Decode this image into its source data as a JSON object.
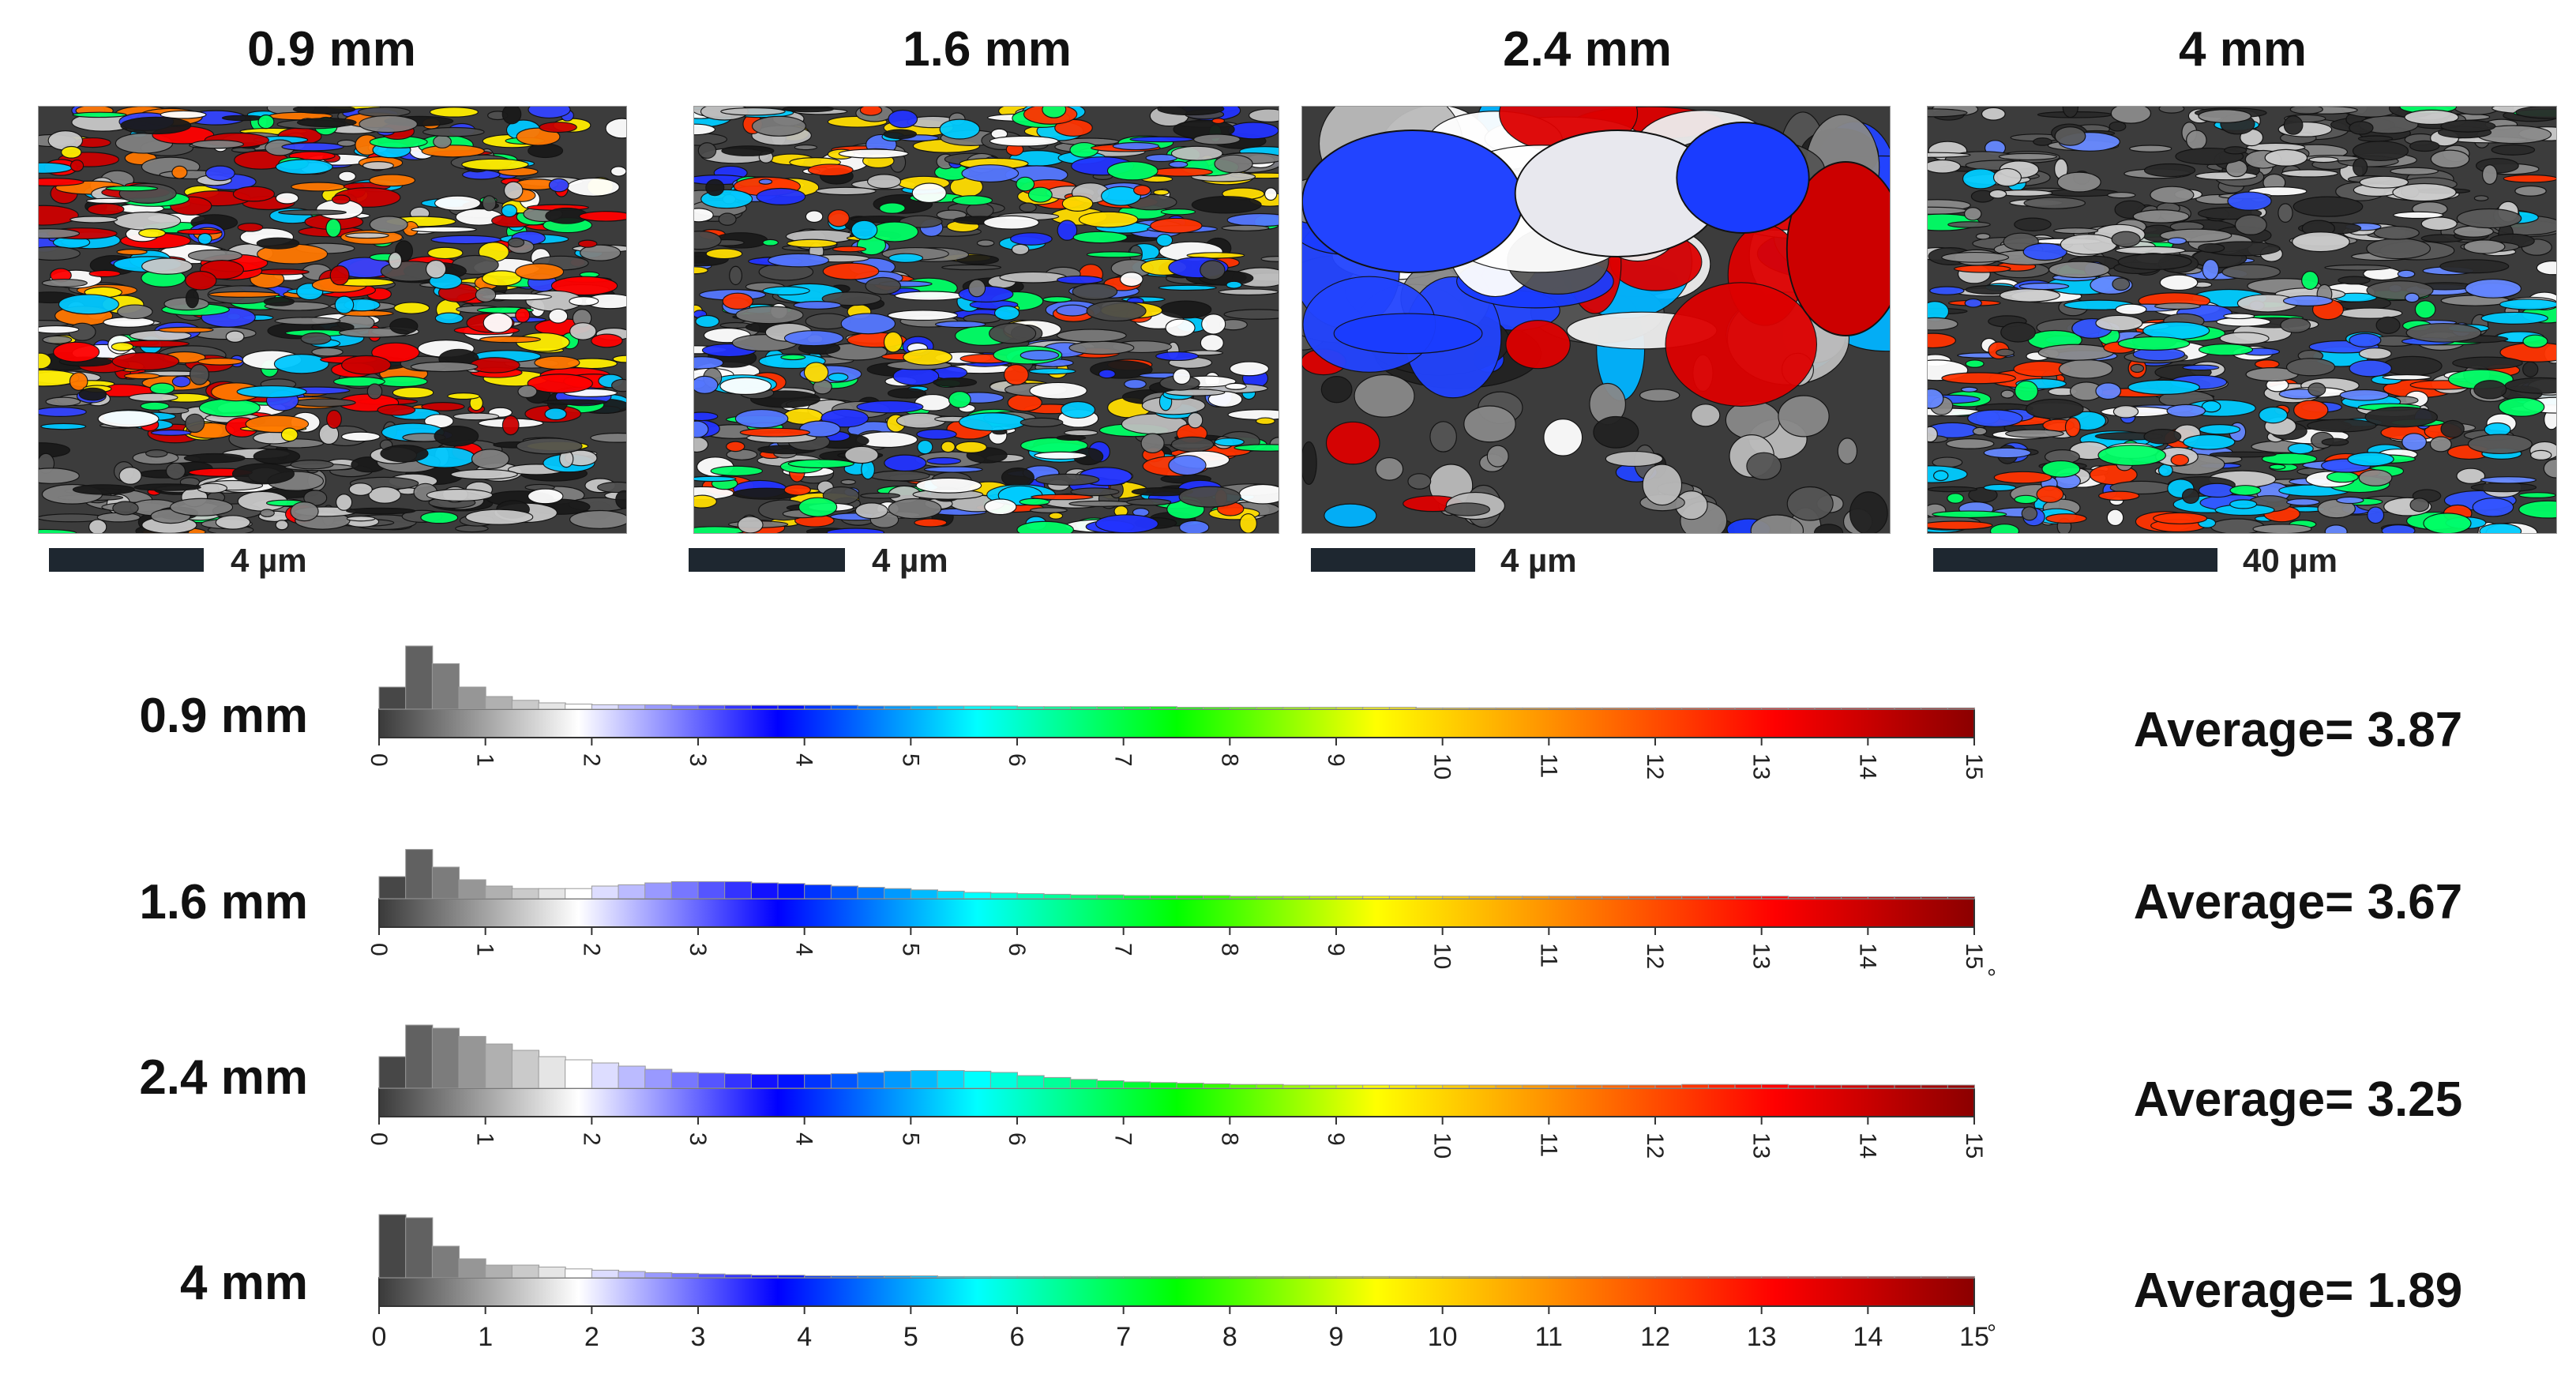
{
  "panels": [
    {
      "title": "0.9 mm",
      "scale": "4 µm"
    },
    {
      "title": "1.6 mm",
      "scale": "4 µm"
    },
    {
      "title": "2.4 mm",
      "scale": "4 µm"
    },
    {
      "title": "4 mm",
      "scale": "40 µm"
    }
  ],
  "color_key": {
    "stops": [
      "#3a3a3a",
      "#ffffff",
      "#0000ff",
      "#00ffff",
      "#00ff00",
      "#ffff00",
      "#ff8000",
      "#ff0000",
      "#8b0000"
    ]
  },
  "chart_data": [
    {
      "type": "bar",
      "label": "0.9 mm",
      "average_label": "Average= 3.87",
      "x_ticks": [
        "0",
        "1",
        "2",
        "3",
        "4",
        "5",
        "6",
        "7",
        "8",
        "9",
        "10",
        "11",
        "12",
        "13",
        "14",
        "15"
      ],
      "xlim": [
        0,
        15
      ],
      "tick_orientation": "rotated",
      "unit_mark": "",
      "bin_width": 0.25,
      "values": [
        0.35,
        1.0,
        0.72,
        0.35,
        0.2,
        0.14,
        0.1,
        0.08,
        0.07,
        0.07,
        0.07,
        0.06,
        0.06,
        0.06,
        0.06,
        0.06,
        0.06,
        0.06,
        0.05,
        0.05,
        0.05,
        0.05,
        0.05,
        0.05,
        0.04,
        0.04,
        0.04,
        0.04,
        0.04,
        0.04,
        0.03,
        0.03,
        0.03,
        0.03,
        0.03,
        0.03,
        0.03,
        0.03,
        0.03,
        0.02,
        0.02,
        0.02,
        0.02,
        0.02,
        0.02,
        0.02,
        0.02,
        0.02,
        0.02,
        0.02,
        0.02,
        0.02,
        0.02,
        0.02,
        0.02,
        0.02,
        0.02,
        0.02,
        0.02,
        0.02
      ]
    },
    {
      "type": "bar",
      "label": "1.6 mm",
      "average_label": "Average= 3.67",
      "x_ticks": [
        "0",
        "1",
        "2",
        "3",
        "4",
        "5",
        "6",
        "7",
        "8",
        "9",
        "10",
        "11",
        "12",
        "13",
        "14",
        "15"
      ],
      "xlim": [
        0,
        15
      ],
      "tick_orientation": "rotated",
      "unit_mark": "°",
      "bin_width": 0.25,
      "values": [
        0.35,
        0.78,
        0.5,
        0.3,
        0.2,
        0.16,
        0.16,
        0.16,
        0.2,
        0.22,
        0.25,
        0.27,
        0.27,
        0.27,
        0.25,
        0.24,
        0.22,
        0.2,
        0.18,
        0.16,
        0.14,
        0.12,
        0.1,
        0.09,
        0.08,
        0.07,
        0.06,
        0.06,
        0.05,
        0.05,
        0.05,
        0.05,
        0.04,
        0.04,
        0.04,
        0.04,
        0.04,
        0.04,
        0.04,
        0.04,
        0.04,
        0.04,
        0.04,
        0.04,
        0.04,
        0.04,
        0.04,
        0.04,
        0.04,
        0.04,
        0.04,
        0.04,
        0.04,
        0.03,
        0.03,
        0.03,
        0.03,
        0.03,
        0.03,
        0.03
      ]
    },
    {
      "type": "bar",
      "label": "2.4 mm",
      "average_label": "Average= 3.25",
      "x_ticks": [
        "0",
        "1",
        "2",
        "3",
        "4",
        "5",
        "6",
        "7",
        "8",
        "9",
        "10",
        "11",
        "12",
        "13",
        "14",
        "15"
      ],
      "xlim": [
        0,
        15
      ],
      "tick_orientation": "rotated",
      "unit_mark": "",
      "bin_width": 0.25,
      "values": [
        0.5,
        1.0,
        0.95,
        0.82,
        0.7,
        0.6,
        0.5,
        0.45,
        0.4,
        0.35,
        0.3,
        0.25,
        0.24,
        0.23,
        0.22,
        0.22,
        0.22,
        0.23,
        0.25,
        0.27,
        0.28,
        0.28,
        0.27,
        0.25,
        0.2,
        0.17,
        0.14,
        0.12,
        0.1,
        0.09,
        0.08,
        0.07,
        0.06,
        0.06,
        0.05,
        0.05,
        0.05,
        0.05,
        0.05,
        0.05,
        0.05,
        0.05,
        0.05,
        0.05,
        0.05,
        0.05,
        0.05,
        0.05,
        0.05,
        0.06,
        0.06,
        0.06,
        0.06,
        0.05,
        0.05,
        0.05,
        0.05,
        0.05,
        0.05,
        0.05
      ]
    },
    {
      "type": "bar",
      "label": "4 mm",
      "average_label": "Average= 1.89",
      "x_ticks": [
        "0",
        "1",
        "2",
        "3",
        "4",
        "5",
        "6",
        "7",
        "8",
        "9",
        "10",
        "11",
        "12",
        "13",
        "14",
        "15"
      ],
      "xlim": [
        0,
        15
      ],
      "tick_orientation": "upright",
      "unit_mark": "°",
      "bin_width": 0.25,
      "values": [
        1.0,
        0.95,
        0.5,
        0.3,
        0.2,
        0.2,
        0.17,
        0.14,
        0.12,
        0.1,
        0.08,
        0.07,
        0.06,
        0.05,
        0.04,
        0.04,
        0.03,
        0.03,
        0.03,
        0.03,
        0.03,
        0.02,
        0.02,
        0.02,
        0.02,
        0.02,
        0.02,
        0.02,
        0.02,
        0.02,
        0.02,
        0.02,
        0.02,
        0.02,
        0.02,
        0.02,
        0.02,
        0.02,
        0.02,
        0.02,
        0.02,
        0.02,
        0.02,
        0.02,
        0.02,
        0.02,
        0.02,
        0.02,
        0.02,
        0.02,
        0.02,
        0.02,
        0.02,
        0.02,
        0.02,
        0.02,
        0.02,
        0.02,
        0.02,
        0.02
      ]
    }
  ]
}
